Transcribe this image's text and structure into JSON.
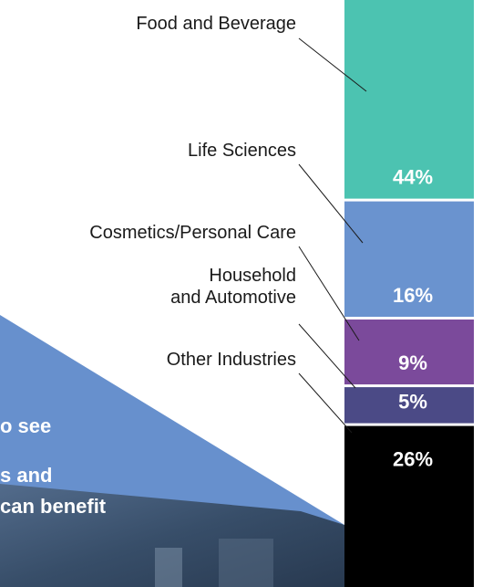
{
  "chart_data": {
    "type": "stacked-bar",
    "categories": [
      "Food and Beverage",
      "Life Sciences",
      "Cosmetics/Personal Care",
      "Household\nand Automotive",
      "Other Industries"
    ],
    "values": [
      44,
      16,
      9,
      5,
      26
    ],
    "value_labels": [
      "44%",
      "16%",
      "9%",
      "5%",
      "26%"
    ],
    "colors": [
      "#4cc3b1",
      "#6a93cf",
      "#7b4a9b",
      "#4b4a86",
      "#000000"
    ],
    "annotations": [
      "o see",
      "s and",
      "can benefit"
    ]
  }
}
